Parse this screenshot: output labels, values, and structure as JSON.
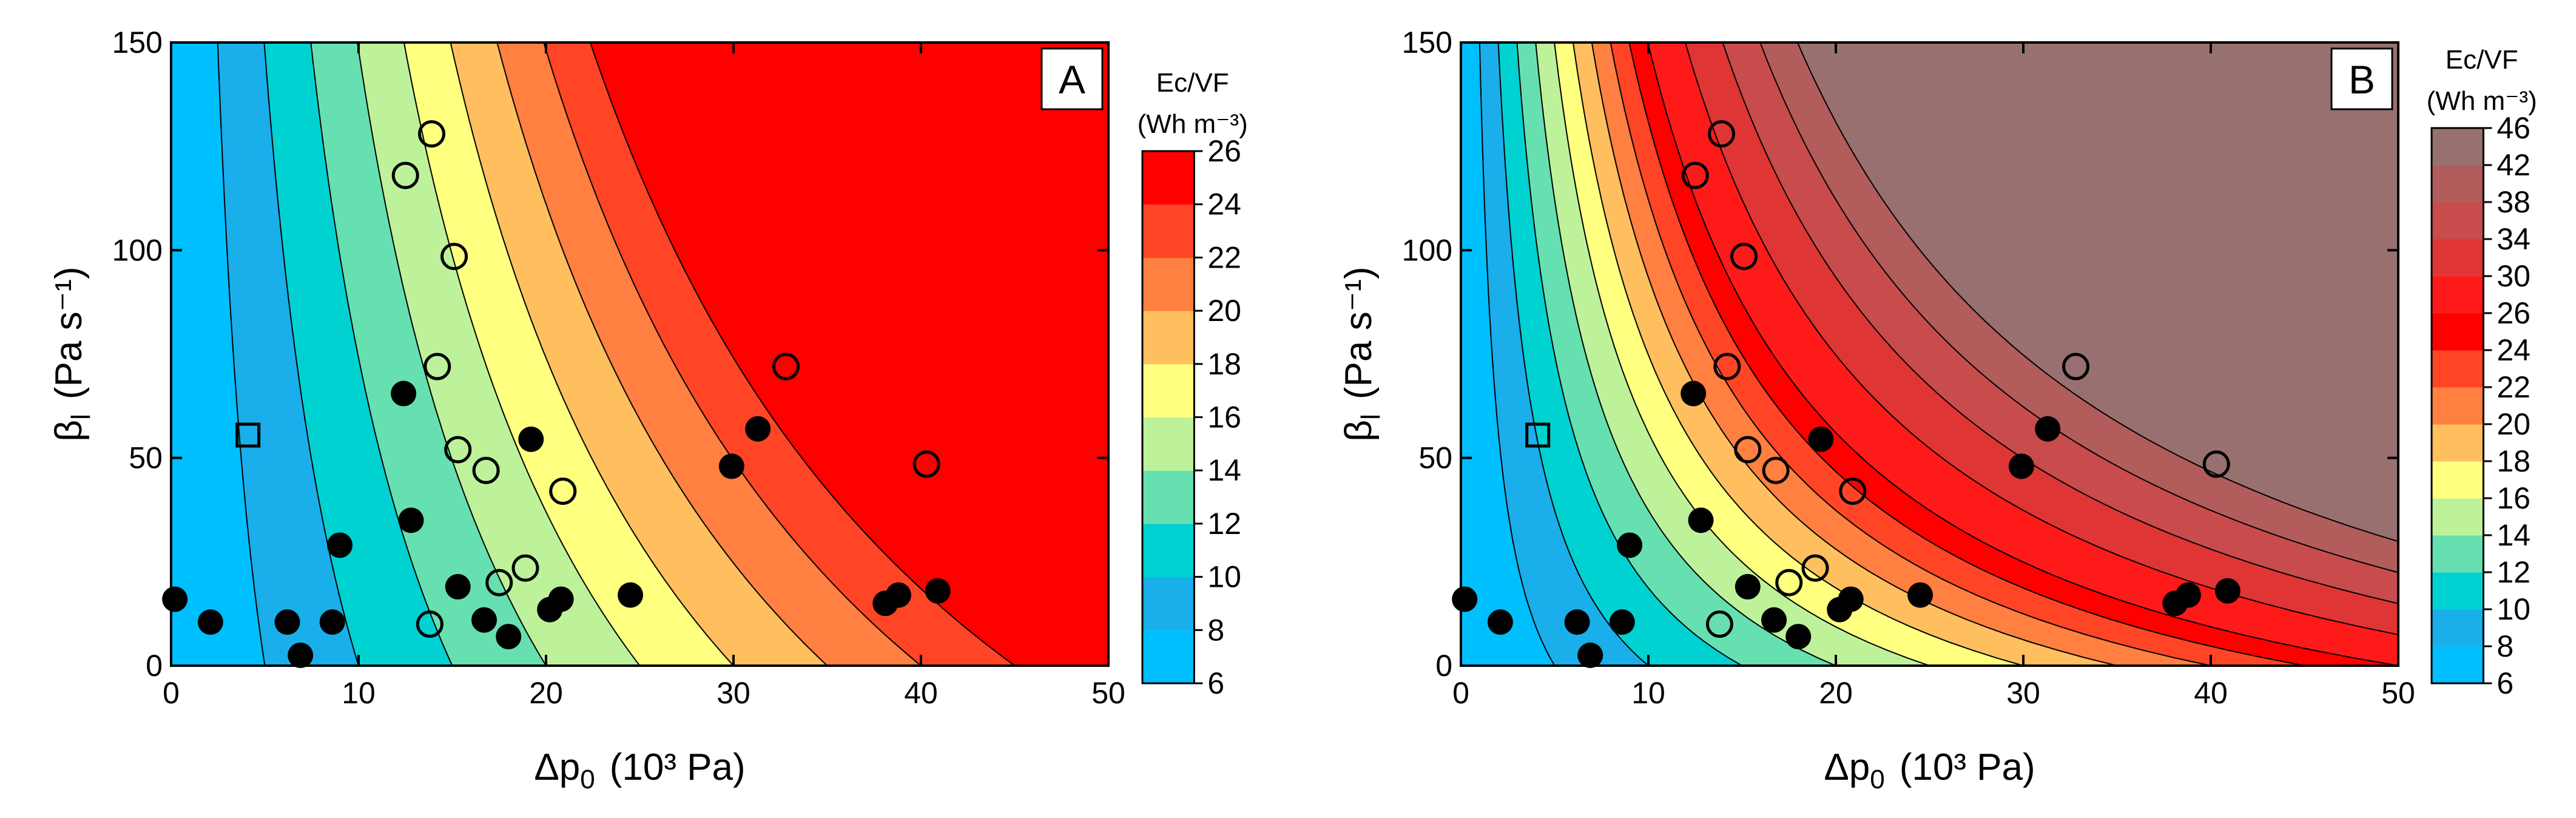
{
  "figure": {
    "description_free": true
  },
  "chart_data": [
    {
      "type": "contour",
      "panel_label": "A",
      "xlabel": {
        "symbol": "Δp",
        "sub": "0",
        "unit": "(10³ Pa)"
      },
      "ylabel": {
        "symbol": "β",
        "sub": "l",
        "unit": "(Pa s⁻¹)"
      },
      "xlim": [
        0,
        50
      ],
      "ylim": [
        0,
        150
      ],
      "xticks": [
        0,
        10,
        20,
        30,
        40,
        50
      ],
      "yticks": [
        0,
        50,
        100,
        150
      ],
      "colorbar": {
        "title_line1": "Ec/VF",
        "title_line2": "(Wh m⁻³)",
        "levels": [
          6,
          8,
          10,
          12,
          14,
          16,
          18,
          20,
          22,
          24,
          26
        ],
        "colors": [
          "#00BFFF",
          "#1AAEEB",
          "#00D2D2",
          "#66E0B0",
          "#BDF29A",
          "#FFFF80",
          "#FFBF5F",
          "#FF8040",
          "#FF4525",
          "#FF0000"
        ]
      },
      "contour_model": {
        "a": 6.0,
        "b": 0.4,
        "c": 0.0027
      },
      "filled_points": [
        [
          0.2,
          16
        ],
        [
          2.1,
          10.5
        ],
        [
          6.2,
          10.5
        ],
        [
          6.9,
          2.5
        ],
        [
          8.6,
          10.5
        ],
        [
          9.0,
          29
        ],
        [
          12.4,
          65.5
        ],
        [
          12.8,
          35
        ],
        [
          15.3,
          19
        ],
        [
          16.7,
          11
        ],
        [
          18.0,
          7
        ],
        [
          19.2,
          54.5
        ],
        [
          20.2,
          13.5
        ],
        [
          20.8,
          16
        ],
        [
          24.5,
          17
        ],
        [
          29.9,
          48
        ],
        [
          31.3,
          57
        ],
        [
          38.1,
          15
        ],
        [
          38.8,
          17
        ],
        [
          40.9,
          18
        ]
      ],
      "open_circles": [
        [
          12.5,
          118
        ],
        [
          13.9,
          128
        ],
        [
          15.1,
          98.5
        ],
        [
          14.2,
          72
        ],
        [
          15.3,
          52
        ],
        [
          16.8,
          47
        ],
        [
          13.8,
          10
        ],
        [
          17.5,
          20
        ],
        [
          18.9,
          23.5
        ],
        [
          20.9,
          42
        ],
        [
          32.8,
          72
        ],
        [
          40.3,
          48.5
        ]
      ],
      "open_square": [
        [
          4.1,
          55.5
        ]
      ]
    },
    {
      "type": "contour",
      "panel_label": "B",
      "xlabel": {
        "symbol": "Δp",
        "sub": "0",
        "unit": "(10³ Pa)"
      },
      "ylabel": {
        "symbol": "β",
        "sub": "l",
        "unit": "(Pa s⁻¹)"
      },
      "xlim": [
        0,
        50
      ],
      "ylim": [
        0,
        150
      ],
      "xticks": [
        0,
        10,
        20,
        30,
        40,
        50
      ],
      "yticks": [
        0,
        50,
        100,
        150
      ],
      "colorbar": {
        "title_line1": "Ec/VF",
        "title_line2": "(Wh m⁻³)",
        "levels": [
          6,
          8,
          10,
          12,
          14,
          16,
          18,
          20,
          22,
          24,
          26,
          30,
          34,
          38,
          42,
          46
        ],
        "colors": [
          "#00BFFF",
          "#1AAEEB",
          "#00D2D2",
          "#66E0B0",
          "#BDF29A",
          "#FFFF80",
          "#FFBF5F",
          "#FF8040",
          "#FF4525",
          "#FF0000",
          "#FF1A1A",
          "#E03535",
          "#C84C4C",
          "#B25C5C",
          "#987070"
        ]
      },
      "contour_model": {
        "a": 6.0,
        "b": 0.4,
        "c": 0.0107
      },
      "filled_points": [
        [
          0.2,
          16
        ],
        [
          2.1,
          10.5
        ],
        [
          6.2,
          10.5
        ],
        [
          6.9,
          2.5
        ],
        [
          8.6,
          10.5
        ],
        [
          9.0,
          29
        ],
        [
          12.4,
          65.5
        ],
        [
          12.8,
          35
        ],
        [
          15.3,
          19
        ],
        [
          16.7,
          11
        ],
        [
          18.0,
          7
        ],
        [
          19.2,
          54.5
        ],
        [
          20.2,
          13.5
        ],
        [
          20.8,
          16
        ],
        [
          24.5,
          17
        ],
        [
          29.9,
          48
        ],
        [
          31.3,
          57
        ],
        [
          38.1,
          15
        ],
        [
          38.8,
          17
        ],
        [
          40.9,
          18
        ]
      ],
      "open_circles": [
        [
          12.5,
          118
        ],
        [
          13.9,
          128
        ],
        [
          15.1,
          98.5
        ],
        [
          14.2,
          72
        ],
        [
          15.3,
          52
        ],
        [
          16.8,
          47
        ],
        [
          13.8,
          10
        ],
        [
          17.5,
          20
        ],
        [
          18.9,
          23.5
        ],
        [
          20.9,
          42
        ],
        [
          32.8,
          72
        ],
        [
          40.3,
          48.5
        ]
      ],
      "open_square": [
        [
          4.1,
          55.5
        ]
      ]
    }
  ]
}
